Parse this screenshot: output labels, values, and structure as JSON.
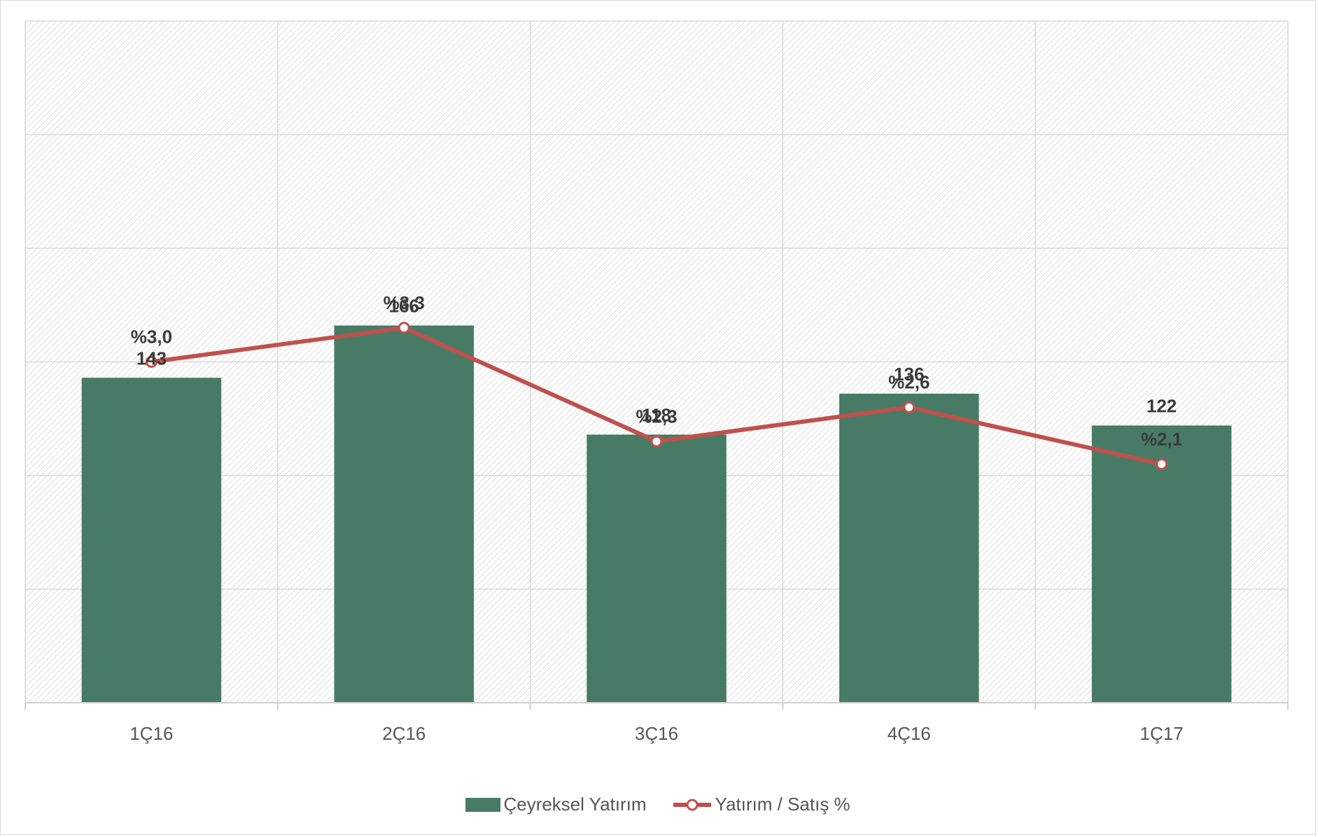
{
  "chart_data": {
    "type": "bar",
    "categories": [
      "1Ç16",
      "2Ç16",
      "3Ç16",
      "4Ç16",
      "1Ç17"
    ],
    "series": [
      {
        "name": "Çeyreksel Yatırım",
        "kind": "bar",
        "color": "#487b66",
        "values": [
          143,
          166,
          118,
          136,
          122
        ],
        "labels": [
          "143",
          "166",
          "118",
          "136",
          "122"
        ]
      },
      {
        "name": "Yatırım / Satış %",
        "kind": "line",
        "color": "#c0504d",
        "values": [
          3.0,
          3.3,
          2.3,
          2.6,
          2.1
        ],
        "labels": [
          "%3,0",
          "%3,3",
          "%2,3",
          "%2,6",
          "%2,1"
        ]
      }
    ],
    "ylim_bar": [
      0,
      300
    ],
    "ylim_line": [
      0,
      6
    ],
    "grid": true,
    "legend": "bottom"
  }
}
